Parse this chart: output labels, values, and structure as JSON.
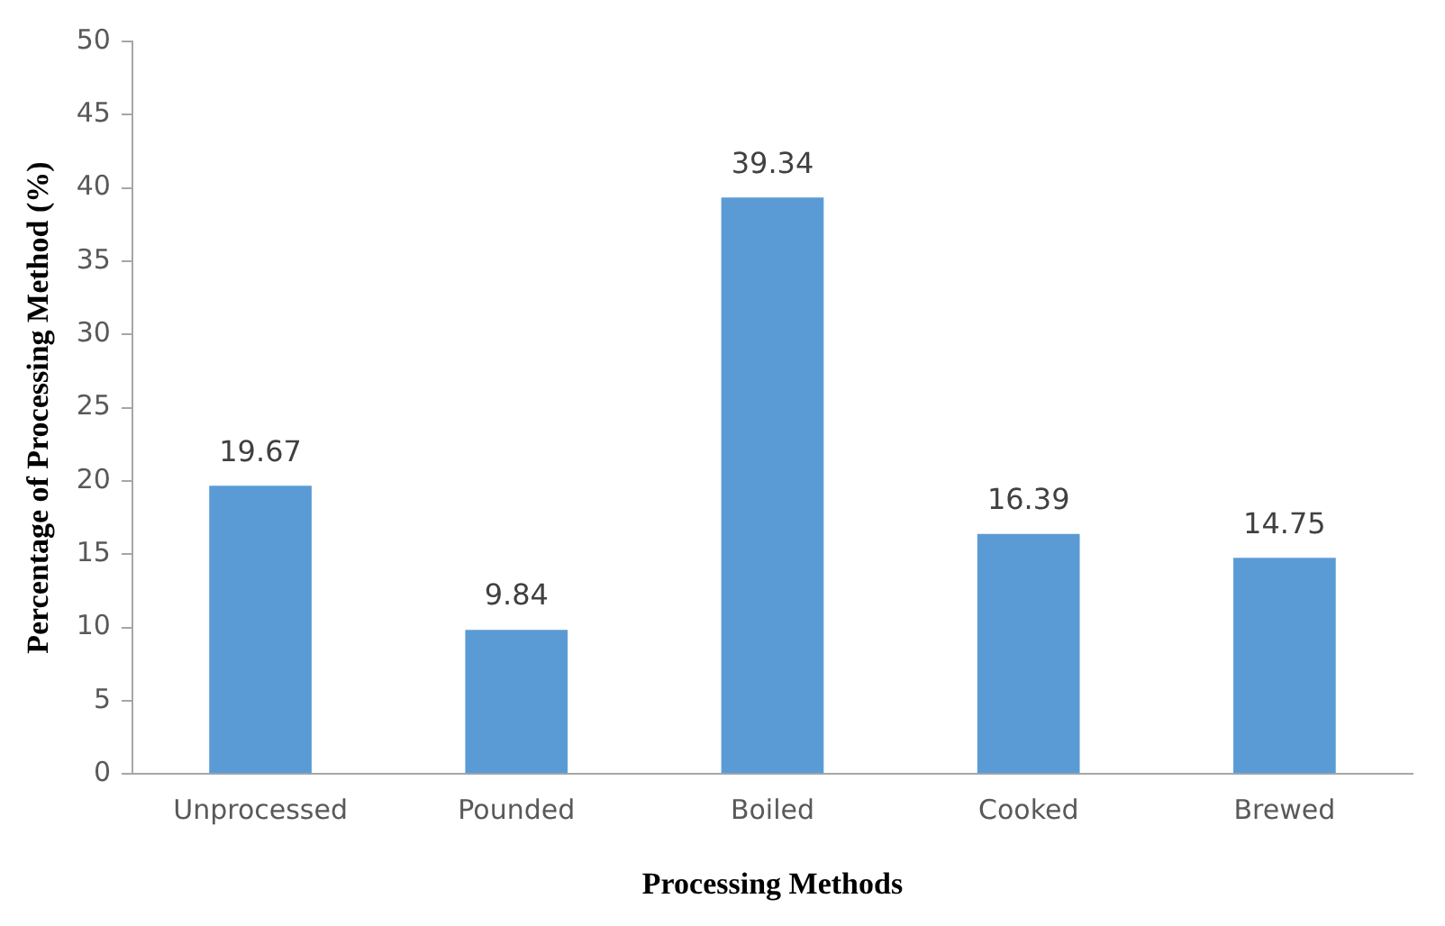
{
  "chart_data": {
    "type": "bar",
    "xlabel": "Processing Methods",
    "ylabel": "Percentage of Processing Method (%)",
    "categories": [
      "Unprocessed",
      "Pounded",
      "Boiled",
      "Cooked",
      "Brewed"
    ],
    "values": [
      19.67,
      9.84,
      39.34,
      16.39,
      14.75
    ],
    "color": "#5b9bd5",
    "ylim": [
      0,
      50
    ],
    "yticks": [
      0,
      5,
      10,
      15,
      20,
      25,
      30,
      35,
      40,
      45,
      50
    ],
    "grid": false,
    "legend": false,
    "data_labels": true
  }
}
